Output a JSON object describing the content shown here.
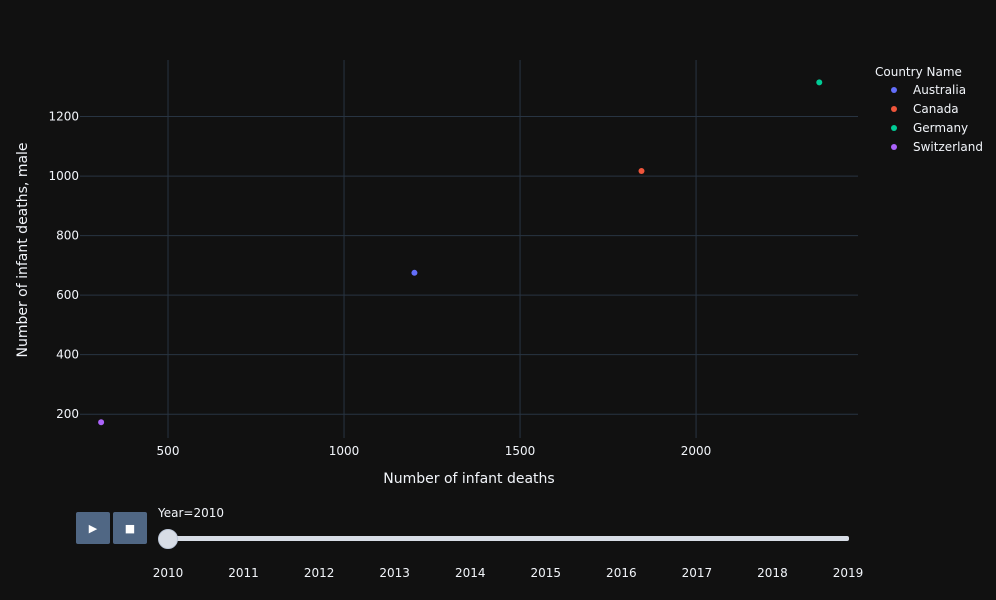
{
  "chart_data": {
    "type": "scatter",
    "xlabel": "Number of infant deaths",
    "ylabel": "Number of infant deaths, male",
    "xlim": [
      250,
      2460
    ],
    "ylim": [
      120,
      1390
    ],
    "xticks": [
      500,
      1000,
      1500,
      2000
    ],
    "yticks": [
      200,
      400,
      600,
      800,
      1000,
      1200
    ],
    "grid": true,
    "legend_title": "Country Name",
    "legend_position": "top-right",
    "series": [
      {
        "name": "Australia",
        "color": "#636efa",
        "points": [
          {
            "x": 1200,
            "y": 675
          }
        ]
      },
      {
        "name": "Canada",
        "color": "#ef553b",
        "points": [
          {
            "x": 1845,
            "y": 1017
          }
        ]
      },
      {
        "name": "Germany",
        "color": "#00cc96",
        "points": [
          {
            "x": 2350,
            "y": 1315
          }
        ]
      },
      {
        "name": "Switzerland",
        "color": "#ab63fa",
        "points": [
          {
            "x": 310,
            "y": 173
          }
        ]
      }
    ]
  },
  "controls": {
    "play_icon": "▶",
    "stop_icon": "■",
    "current_label": "Year=2010",
    "slider_steps": [
      "2010",
      "2011",
      "2012",
      "2013",
      "2014",
      "2015",
      "2016",
      "2017",
      "2018",
      "2019"
    ],
    "current_step": 0
  }
}
